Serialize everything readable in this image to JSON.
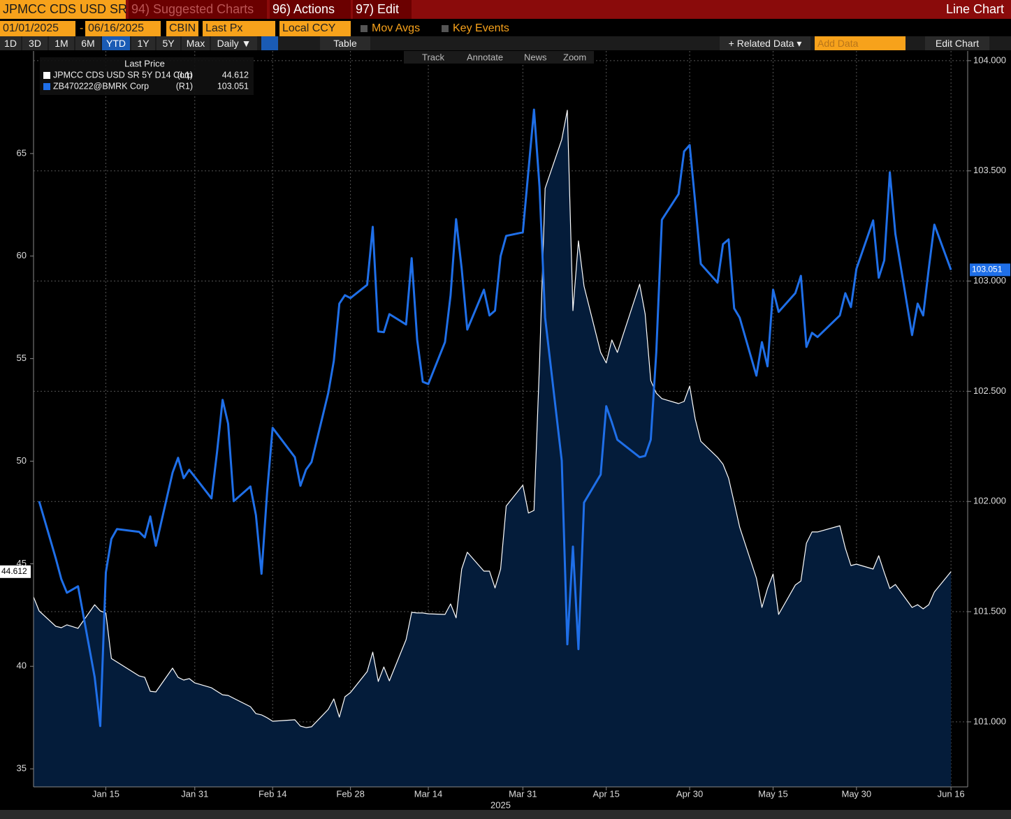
{
  "toolbar": {
    "security": "JPMCC CDS USD SR",
    "suggested": "94) Suggested Charts",
    "actions": "96) Actions",
    "edit": "97) Edit",
    "view": "Line Chart",
    "start_date": "01/01/2025",
    "dash": "-",
    "end_date": "06/16/2025",
    "source": "CBIN",
    "field": "Last Px",
    "currency": "Local CCY",
    "mov_avgs": "Mov Avgs",
    "key_events": "Key Events",
    "periods": [
      "1D",
      "3D",
      "1M",
      "6M",
      "YTD",
      "1Y",
      "5Y",
      "Max"
    ],
    "frequency": "Daily ▼",
    "table": "Table",
    "related": "+ Related Data ▾",
    "add_data": "Add Data",
    "edit_chart": "Edit Chart",
    "chart_tools": [
      "Track",
      "Annotate",
      "News",
      "Zoom"
    ]
  },
  "chart_data": {
    "type": "line",
    "legend_title": "Last Price",
    "xlabel": "2025",
    "x": [
      "2025-01-02",
      "2025-01-03",
      "2025-01-06",
      "2025-01-07",
      "2025-01-08",
      "2025-01-10",
      "2025-01-13",
      "2025-01-14",
      "2025-01-15",
      "2025-01-16",
      "2025-01-17",
      "2025-01-21",
      "2025-01-22",
      "2025-01-23",
      "2025-01-24",
      "2025-01-27",
      "2025-01-28",
      "2025-01-29",
      "2025-01-30",
      "2025-01-31",
      "2025-02-03",
      "2025-02-04",
      "2025-02-05",
      "2025-02-06",
      "2025-02-07",
      "2025-02-10",
      "2025-02-11",
      "2025-02-12",
      "2025-02-13",
      "2025-02-14",
      "2025-02-18",
      "2025-02-19",
      "2025-02-20",
      "2025-02-21",
      "2025-02-24",
      "2025-02-25",
      "2025-02-26",
      "2025-02-27",
      "2025-02-28",
      "2025-03-03",
      "2025-03-04",
      "2025-03-05",
      "2025-03-06",
      "2025-03-07",
      "2025-03-10",
      "2025-03-11",
      "2025-03-12",
      "2025-03-13",
      "2025-03-14",
      "2025-03-17",
      "2025-03-18",
      "2025-03-19",
      "2025-03-20",
      "2025-03-21",
      "2025-03-24",
      "2025-03-25",
      "2025-03-26",
      "2025-03-27",
      "2025-03-28",
      "2025-03-31",
      "2025-04-01",
      "2025-04-02",
      "2025-04-03",
      "2025-04-04",
      "2025-04-07",
      "2025-04-08",
      "2025-04-09",
      "2025-04-10",
      "2025-04-11",
      "2025-04-14",
      "2025-04-15",
      "2025-04-16",
      "2025-04-17",
      "2025-04-21",
      "2025-04-22",
      "2025-04-23",
      "2025-04-24",
      "2025-04-25",
      "2025-04-28",
      "2025-04-29",
      "2025-04-30",
      "2025-05-01",
      "2025-05-02",
      "2025-05-05",
      "2025-05-06",
      "2025-05-07",
      "2025-05-08",
      "2025-05-09",
      "2025-05-12",
      "2025-05-13",
      "2025-05-14",
      "2025-05-15",
      "2025-05-16",
      "2025-05-19",
      "2025-05-20",
      "2025-05-21",
      "2025-05-22",
      "2025-05-23",
      "2025-05-27",
      "2025-05-28",
      "2025-05-29",
      "2025-05-30",
      "2025-06-02",
      "2025-06-03",
      "2025-06-04",
      "2025-06-05",
      "2025-06-06",
      "2025-06-09",
      "2025-06-10",
      "2025-06-11",
      "2025-06-12",
      "2025-06-13",
      "2025-06-16"
    ],
    "xlim": [
      "2025-01-02",
      "2025-06-19"
    ],
    "xticks": [
      {
        "value": "2025-01-15",
        "label": "Jan 15"
      },
      {
        "value": "2025-01-31",
        "label": "Jan 31"
      },
      {
        "value": "2025-02-14",
        "label": "Feb 14"
      },
      {
        "value": "2025-02-28",
        "label": "Feb 28"
      },
      {
        "value": "2025-03-14",
        "label": "Mar 14"
      },
      {
        "value": "2025-03-31",
        "label": "Mar 31"
      },
      {
        "value": "2025-04-15",
        "label": "Apr 15"
      },
      {
        "value": "2025-04-30",
        "label": "Apr 30"
      },
      {
        "value": "2025-05-15",
        "label": "May 15"
      },
      {
        "value": "2025-05-30",
        "label": "May 30"
      },
      {
        "value": "2025-06-16",
        "label": "Jun 16"
      }
    ],
    "ylim": [
      34.12,
      70.0
    ],
    "yticks": [
      35,
      40,
      45,
      50,
      55,
      60,
      65
    ],
    "y2lim": [
      100.705,
      104.044
    ],
    "y2ticks": [
      {
        "value": 101,
        "label": "101.000"
      },
      {
        "value": 101.5,
        "label": "101.500"
      },
      {
        "value": 102,
        "label": "102.000"
      },
      {
        "value": 102.5,
        "label": "102.500"
      },
      {
        "value": 103,
        "label": "103.000"
      },
      {
        "value": 103.5,
        "label": "103.500"
      },
      {
        "value": 104,
        "label": "104.000"
      }
    ],
    "grid": true,
    "series": [
      {
        "name": "JPMCC CDS USD SR 5Y D14 Corp",
        "tag": "(L1)",
        "color": "#ffffff",
        "fill": "#041c3a",
        "style": "area",
        "values": [
          43.38,
          42.7,
          41.95,
          41.88,
          42.02,
          41.85,
          43.0,
          42.7,
          42.6,
          40.38,
          40.21,
          39.53,
          39.46,
          38.78,
          38.75,
          39.91,
          39.46,
          39.33,
          39.4,
          39.19,
          38.95,
          38.78,
          38.61,
          38.58,
          38.44,
          38.03,
          37.69,
          37.63,
          37.49,
          37.32,
          37.39,
          37.08,
          37.01,
          37.05,
          37.9,
          38.41,
          37.52,
          38.51,
          38.72,
          39.74,
          40.69,
          39.26,
          39.97,
          39.29,
          41.3,
          42.63,
          42.6,
          42.6,
          42.56,
          42.53,
          43.04,
          42.36,
          44.74,
          45.56,
          44.64,
          44.64,
          43.82,
          44.74,
          47.81,
          48.83,
          47.47,
          47.6,
          54.79,
          63.3,
          65.68,
          67.11,
          57.34,
          60.74,
          58.53,
          55.3,
          54.79,
          55.91,
          55.3,
          58.63,
          57.17,
          53.93,
          53.32,
          53.05,
          52.81,
          52.91,
          53.66,
          52.06,
          50.97,
          50.19,
          49.85,
          49.17,
          47.98,
          46.78,
          44.3,
          42.87,
          43.79,
          44.5,
          42.53,
          43.96,
          44.16,
          46.0,
          46.55,
          46.55,
          46.85,
          45.76,
          44.91,
          44.98,
          44.74,
          45.39,
          44.57,
          43.79,
          43.99,
          42.87,
          43.0,
          42.8,
          43.0,
          43.62,
          44.612
        ]
      },
      {
        "name": "ZB470222@BMRK Corp",
        "tag": "(R1)",
        "color": "#1f6fe8",
        "style": "line",
        "axis": "y2",
        "values": [
          null,
          102.001,
          101.742,
          101.647,
          101.586,
          101.615,
          101.203,
          100.981,
          101.678,
          101.83,
          101.875,
          101.862,
          101.837,
          101.932,
          101.799,
          102.131,
          102.198,
          102.106,
          102.144,
          102.112,
          102.014,
          102.223,
          102.461,
          102.353,
          102.001,
          102.068,
          101.938,
          101.672,
          102.042,
          102.334,
          102.201,
          102.071,
          102.144,
          102.179,
          102.492,
          102.638,
          102.898,
          102.936,
          102.923,
          102.983,
          103.246,
          102.771,
          102.768,
          102.85,
          102.803,
          103.104,
          102.733,
          102.543,
          102.533,
          102.723,
          102.936,
          103.281,
          103.056,
          102.78,
          102.961,
          102.844,
          102.866,
          103.113,
          103.205,
          103.221,
          103.5,
          103.778,
          103.427,
          102.834,
          102.185,
          101.352,
          101.795,
          101.33,
          101.995,
          102.122,
          102.432,
          102.359,
          102.28,
          102.201,
          102.207,
          102.28,
          102.676,
          103.278,
          103.395,
          103.588,
          103.617,
          103.357,
          103.078,
          102.993,
          103.167,
          103.189,
          102.876,
          102.834,
          102.571,
          102.723,
          102.613,
          102.961,
          102.86,
          102.945,
          103.024,
          102.701,
          102.765,
          102.746,
          102.844,
          102.945,
          102.882,
          103.056,
          103.275,
          103.015,
          103.094,
          103.493,
          103.214,
          102.755,
          102.898,
          102.844,
          103.056,
          103.256,
          103.051
        ]
      }
    ]
  }
}
